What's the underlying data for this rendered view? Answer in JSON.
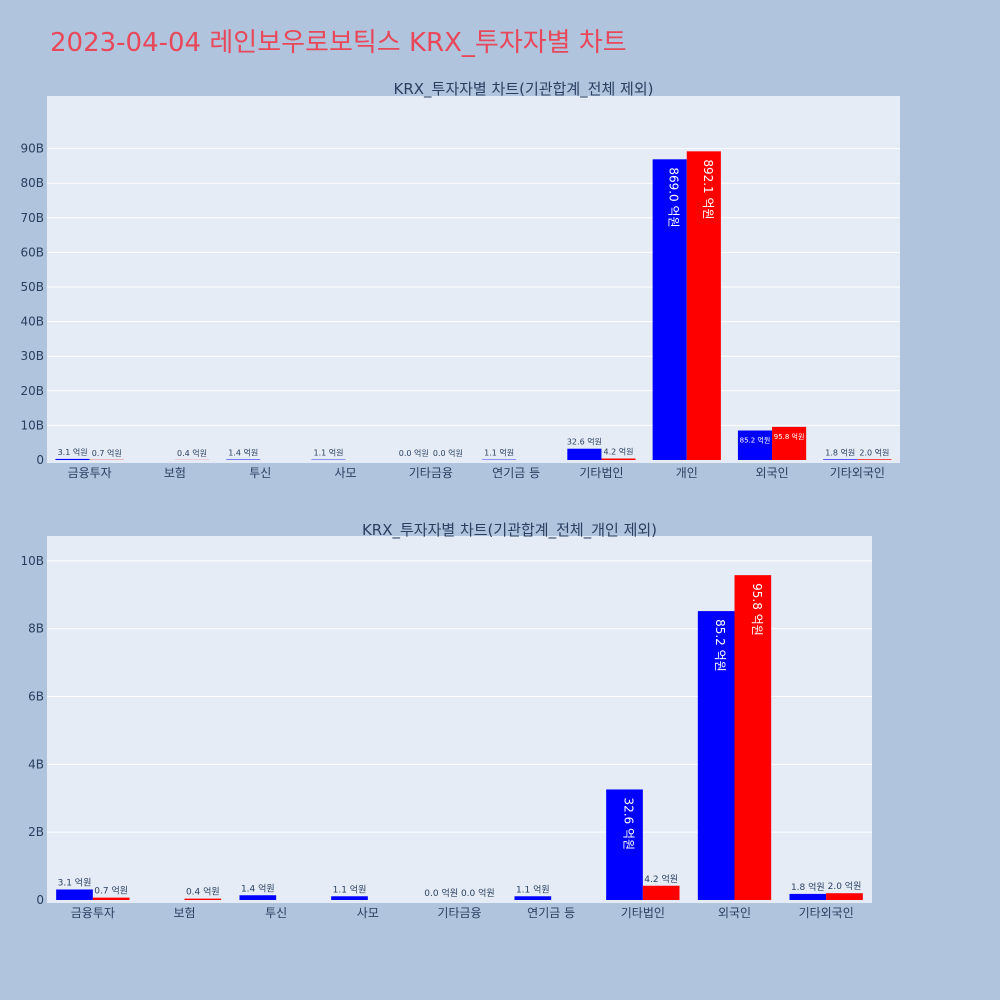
{
  "page_title": "2023-04-04 레인보우로보틱스 KRX_투자자별 차트",
  "colors": {
    "title": "#e8485a",
    "background": "#b0c4de",
    "plot_background": "#e5ecf6",
    "series_a": "#0000ff",
    "series_b": "#ff0000"
  },
  "chart_data": [
    {
      "type": "bar",
      "title": "KRX_투자자별 차트(기관합계_전체 제외)",
      "categories": [
        "금융투자",
        "보험",
        "투신",
        "사모",
        "기타금융",
        "연기금 등",
        "기타법인",
        "개인",
        "외국인",
        "기타외국인"
      ],
      "series": [
        {
          "values": [
            0.31,
            0.0,
            0.14,
            0.11,
            0.0,
            0.11,
            3.26,
            86.9,
            8.52,
            0.18
          ],
          "labels": [
            "3.1 억원",
            "",
            "1.4 억원",
            "1.1 억원",
            "0.0 억원",
            "1.1 억원",
            "32.6 억원",
            "869.0 억원",
            "85.2 억원",
            "1.8 억원"
          ]
        },
        {
          "values": [
            0.07,
            0.04,
            0.0,
            0.0,
            0.0,
            0.0,
            0.42,
            89.21,
            9.58,
            0.2
          ],
          "labels": [
            "0.7 억원",
            "0.4 억원",
            "",
            "",
            "0.0 억원",
            "",
            "4.2 억원",
            "892.1 억원",
            "95.8 억원",
            "2.0 억원"
          ]
        }
      ],
      "value_unit": "B",
      "ylim": [
        0,
        95
      ],
      "yticks": [
        0,
        10,
        20,
        30,
        40,
        50,
        60,
        70,
        80,
        90
      ],
      "ytick_labels": [
        "0",
        "10B",
        "20B",
        "30B",
        "40B",
        "50B",
        "60B",
        "70B",
        "80B",
        "90B"
      ],
      "grid": true
    },
    {
      "type": "bar",
      "title": "KRX_투자자별 차트(기관합계_전체_개인 제외)",
      "categories": [
        "금융투자",
        "보험",
        "투신",
        "사모",
        "기타금융",
        "연기금 등",
        "기타법인",
        "외국인",
        "기타외국인"
      ],
      "series": [
        {
          "values": [
            0.31,
            0.0,
            0.14,
            0.11,
            0.0,
            0.11,
            3.26,
            8.52,
            0.18
          ],
          "labels": [
            "3.1 억원",
            "",
            "1.4 억원",
            "1.1 억원",
            "0.0 억원",
            "1.1 억원",
            "32.6 억원",
            "85.2 억원",
            "1.8 억원"
          ]
        },
        {
          "values": [
            0.07,
            0.04,
            0.0,
            0.0,
            0.0,
            0.0,
            0.42,
            9.58,
            0.2
          ],
          "labels": [
            "0.7 억원",
            "0.4 억원",
            "",
            "",
            "0.0 억원",
            "",
            "4.2 억원",
            "95.8 억원",
            "2.0 억원"
          ]
        }
      ],
      "value_unit": "B",
      "ylim": [
        0,
        10.2
      ],
      "yticks": [
        0,
        2,
        4,
        6,
        8,
        10
      ],
      "ytick_labels": [
        "0",
        "2B",
        "4B",
        "6B",
        "8B",
        "10B"
      ],
      "grid": true
    }
  ]
}
